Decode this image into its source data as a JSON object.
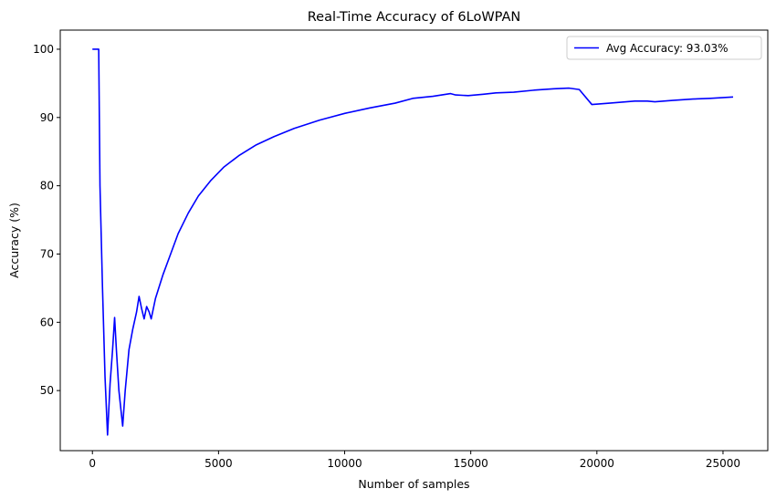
{
  "chart_data": {
    "type": "line",
    "title": "Real-Time Accuracy of 6LoWPAN",
    "xlabel": "Number of samples",
    "ylabel": "Accuracy (%)",
    "xlim": [
      -1275,
      26775
    ],
    "ylim": [
      41.2,
      102.8
    ],
    "xticks": [
      0,
      5000,
      10000,
      15000,
      20000,
      25000
    ],
    "yticks": [
      50,
      60,
      70,
      80,
      90,
      100
    ],
    "grid": false,
    "legend_position": "top-right",
    "series": [
      {
        "name": "Avg Accuracy: 93.03%",
        "color": "#0000ff",
        "points": [
          [
            0,
            100
          ],
          [
            250,
            100
          ],
          [
            300,
            80
          ],
          [
            400,
            65
          ],
          [
            500,
            52
          ],
          [
            600,
            43.5
          ],
          [
            700,
            51
          ],
          [
            800,
            56
          ],
          [
            880,
            60.7
          ],
          [
            950,
            56
          ],
          [
            1050,
            50
          ],
          [
            1200,
            44.8
          ],
          [
            1300,
            50
          ],
          [
            1450,
            56
          ],
          [
            1600,
            59
          ],
          [
            1750,
            61.5
          ],
          [
            1850,
            63.8
          ],
          [
            1950,
            62
          ],
          [
            2050,
            60.5
          ],
          [
            2150,
            62.3
          ],
          [
            2250,
            61.5
          ],
          [
            2330,
            60.5
          ],
          [
            2500,
            63.5
          ],
          [
            2800,
            67
          ],
          [
            3100,
            70
          ],
          [
            3400,
            73
          ],
          [
            3800,
            76
          ],
          [
            4200,
            78.5
          ],
          [
            4700,
            80.8
          ],
          [
            5200,
            82.7
          ],
          [
            5800,
            84.4
          ],
          [
            6500,
            86
          ],
          [
            7200,
            87.2
          ],
          [
            8000,
            88.4
          ],
          [
            9000,
            89.6
          ],
          [
            10000,
            90.6
          ],
          [
            11000,
            91.4
          ],
          [
            12000,
            92.1
          ],
          [
            12700,
            92.8
          ],
          [
            13500,
            93.1
          ],
          [
            14200,
            93.5
          ],
          [
            14400,
            93.3
          ],
          [
            14900,
            93.2
          ],
          [
            15500,
            93.4
          ],
          [
            16000,
            93.6
          ],
          [
            16700,
            93.7
          ],
          [
            17500,
            94.0
          ],
          [
            18300,
            94.2
          ],
          [
            18900,
            94.3
          ],
          [
            19300,
            94.1
          ],
          [
            19800,
            91.9
          ],
          [
            20500,
            92.1
          ],
          [
            21500,
            92.4
          ],
          [
            22000,
            92.4
          ],
          [
            22300,
            92.3
          ],
          [
            23000,
            92.5
          ],
          [
            23800,
            92.7
          ],
          [
            24500,
            92.8
          ],
          [
            25400,
            93.0
          ]
        ]
      }
    ]
  }
}
